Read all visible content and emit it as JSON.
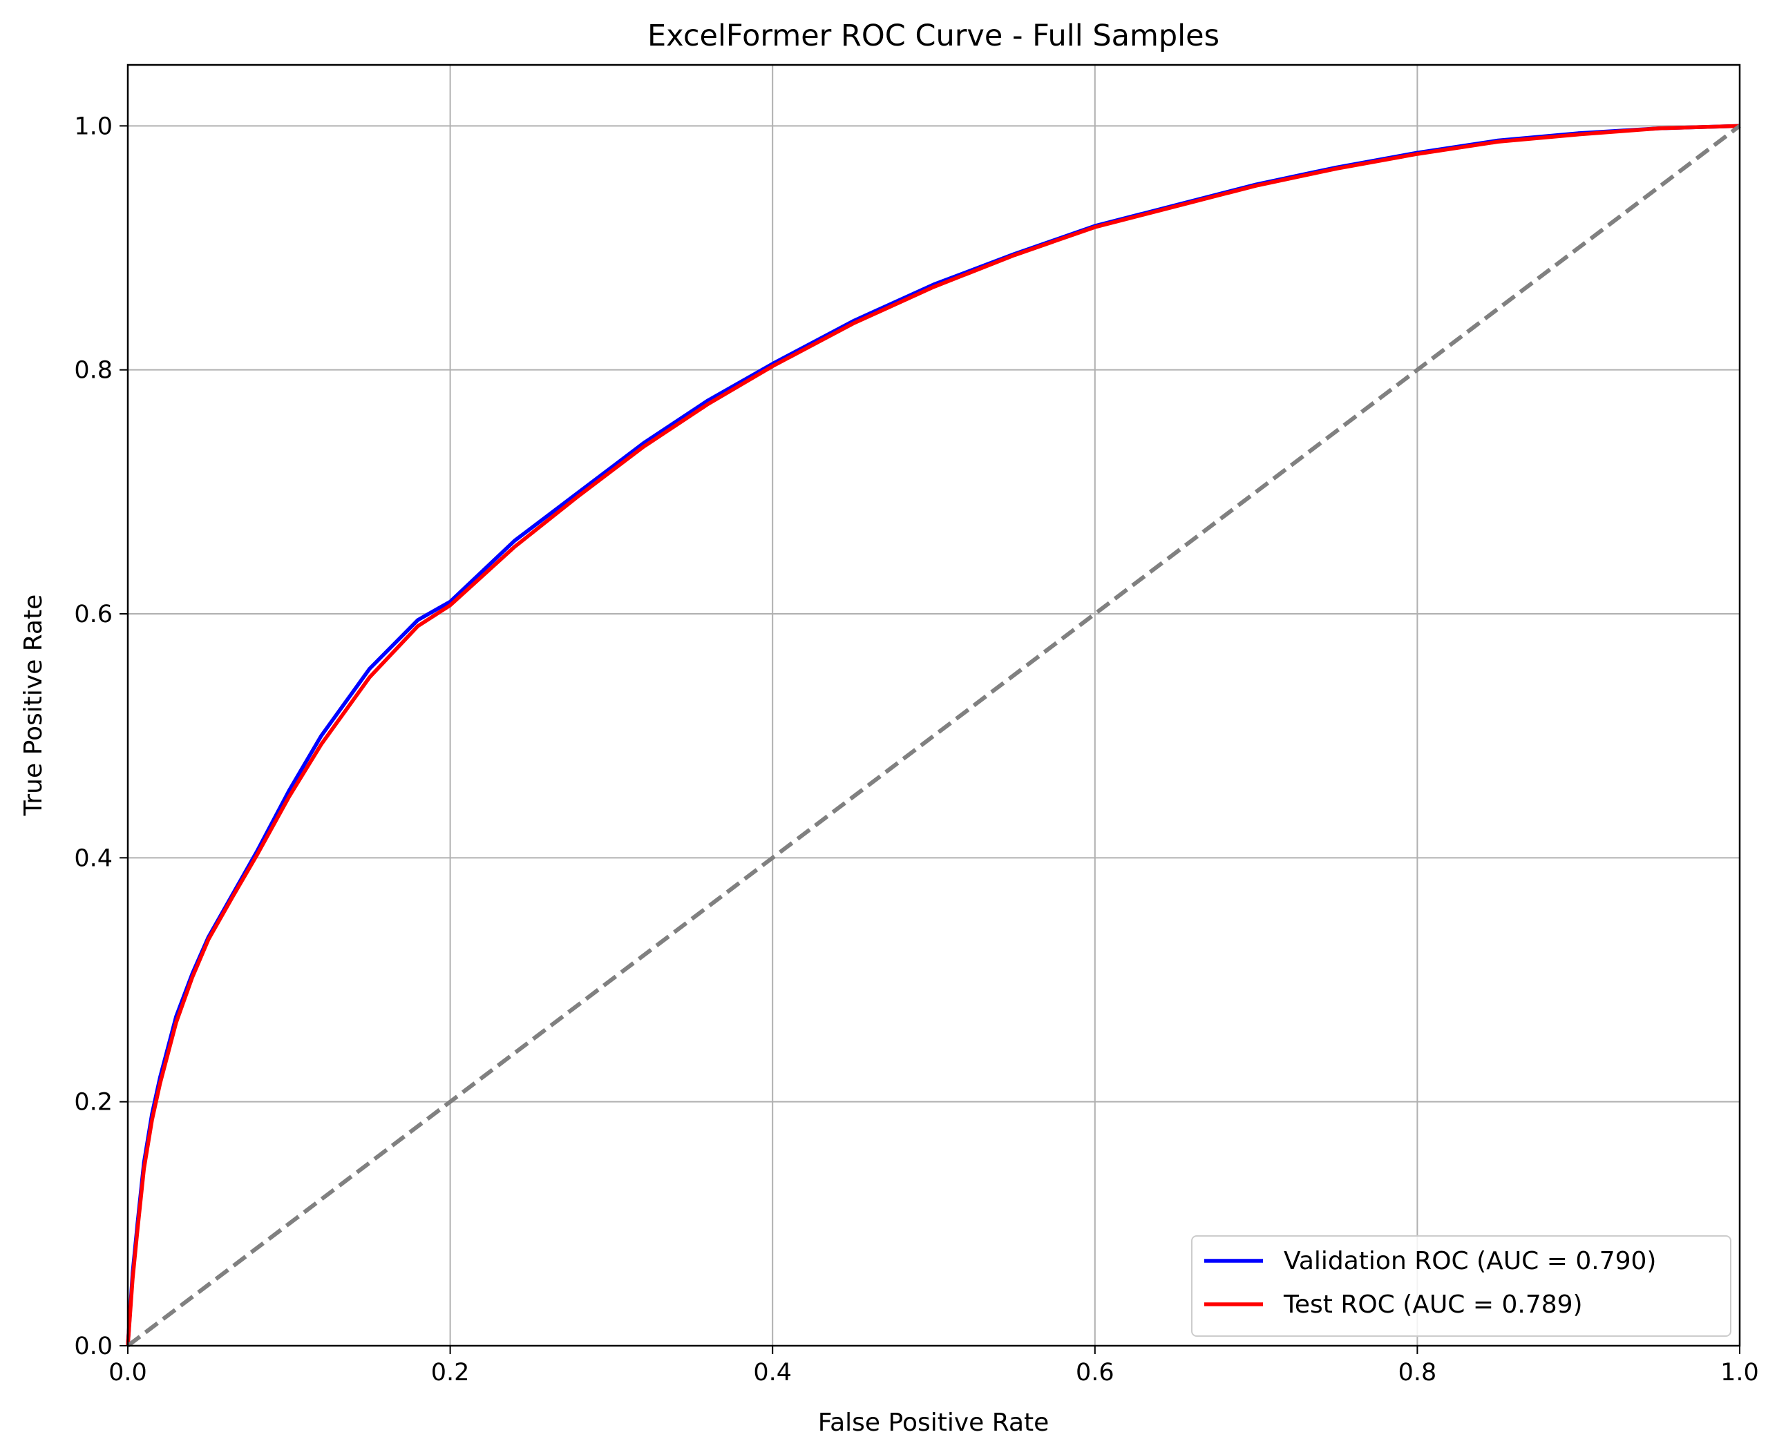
{
  "chart_data": {
    "type": "line",
    "title": "ExcelFormer ROC Curve - Full Samples",
    "xlabel": "False Positive Rate",
    "ylabel": "True Positive Rate",
    "xlim": [
      0.0,
      1.0
    ],
    "ylim": [
      0.0,
      1.05
    ],
    "grid": true,
    "legend_position": "bottom-right",
    "x_ticks": [
      0.0,
      0.2,
      0.4,
      0.6,
      0.8,
      1.0
    ],
    "x_tick_labels": [
      "0.0",
      "0.2",
      "0.4",
      "0.6",
      "0.8",
      "1.0"
    ],
    "y_ticks": [
      0.0,
      0.2,
      0.4,
      0.6,
      0.8,
      1.0
    ],
    "y_tick_labels": [
      "0.0",
      "0.2",
      "0.4",
      "0.6",
      "0.8",
      "1.0"
    ],
    "series": [
      {
        "name": "Validation ROC (AUC = 0.790)",
        "color": "#0000ff",
        "style": "solid",
        "x": [
          0.0,
          0.003,
          0.006,
          0.01,
          0.015,
          0.02,
          0.03,
          0.04,
          0.05,
          0.065,
          0.08,
          0.1,
          0.12,
          0.15,
          0.18,
          0.2,
          0.24,
          0.28,
          0.32,
          0.36,
          0.4,
          0.45,
          0.5,
          0.55,
          0.6,
          0.65,
          0.7,
          0.75,
          0.8,
          0.85,
          0.9,
          0.95,
          1.0
        ],
        "y": [
          0.0,
          0.06,
          0.1,
          0.15,
          0.19,
          0.22,
          0.27,
          0.305,
          0.335,
          0.37,
          0.405,
          0.455,
          0.5,
          0.555,
          0.595,
          0.61,
          0.66,
          0.7,
          0.74,
          0.775,
          0.805,
          0.84,
          0.87,
          0.895,
          0.918,
          0.935,
          0.952,
          0.966,
          0.978,
          0.988,
          0.994,
          0.998,
          1.0
        ]
      },
      {
        "name": "Test ROC (AUC = 0.789)",
        "color": "#ff0000",
        "style": "solid",
        "x": [
          0.0,
          0.003,
          0.006,
          0.01,
          0.015,
          0.02,
          0.03,
          0.04,
          0.05,
          0.065,
          0.08,
          0.1,
          0.12,
          0.15,
          0.18,
          0.2,
          0.24,
          0.28,
          0.32,
          0.36,
          0.4,
          0.45,
          0.5,
          0.55,
          0.6,
          0.65,
          0.7,
          0.75,
          0.8,
          0.85,
          0.9,
          0.95,
          1.0
        ],
        "y": [
          0.0,
          0.055,
          0.095,
          0.145,
          0.185,
          0.215,
          0.265,
          0.302,
          0.333,
          0.368,
          0.402,
          0.45,
          0.493,
          0.548,
          0.59,
          0.607,
          0.655,
          0.697,
          0.737,
          0.772,
          0.803,
          0.838,
          0.868,
          0.894,
          0.917,
          0.934,
          0.951,
          0.965,
          0.977,
          0.987,
          0.993,
          0.998,
          1.0
        ]
      },
      {
        "name": "chance",
        "color": "#808080",
        "style": "dashed",
        "x": [
          0.0,
          1.0
        ],
        "y": [
          0.0,
          1.0
        ]
      }
    ],
    "legend": [
      {
        "label": "Validation ROC (AUC = 0.790)",
        "color": "#0000ff"
      },
      {
        "label": "Test ROC (AUC = 0.789)",
        "color": "#ff0000"
      }
    ]
  }
}
